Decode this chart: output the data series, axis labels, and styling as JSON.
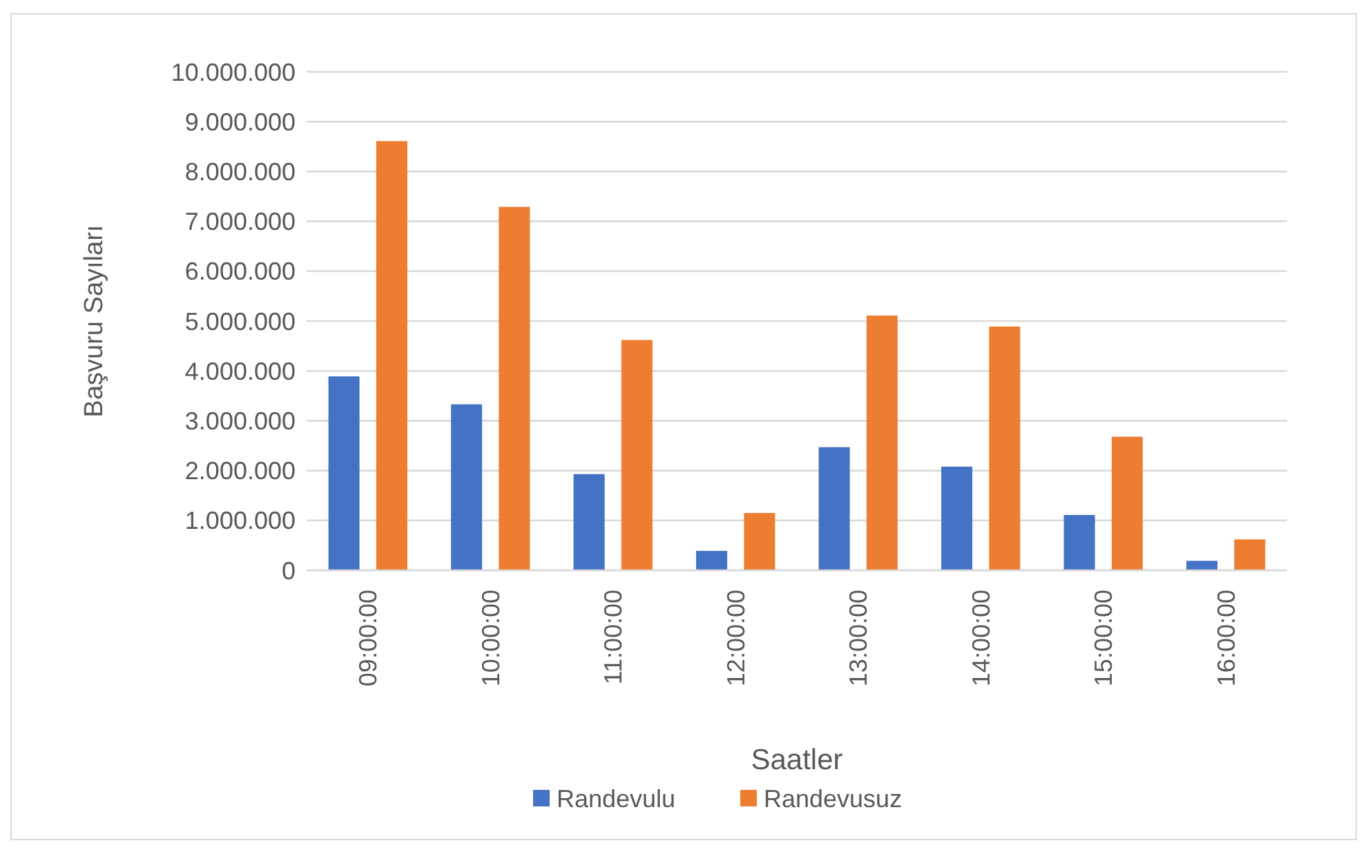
{
  "chart_data": {
    "type": "bar",
    "xlabel": "Saatler",
    "ylabel": "Başvuru Sayıları",
    "categories": [
      "09:00:00",
      "10:00:00",
      "11:00:00",
      "12:00:00",
      "13:00:00",
      "14:00:00",
      "15:00:00",
      "16:00:00"
    ],
    "series": [
      {
        "name": "Randevulu",
        "color": "#4472c4",
        "values": [
          3890000,
          3330000,
          1930000,
          390000,
          2470000,
          2080000,
          1110000,
          190000
        ]
      },
      {
        "name": "Randevusuz",
        "color": "#ed7d31",
        "values": [
          8610000,
          7290000,
          4620000,
          1150000,
          5110000,
          4890000,
          2680000,
          620000
        ]
      }
    ],
    "ylim": [
      0,
      10000000
    ],
    "yticks": [
      {
        "value": 0,
        "label": "0"
      },
      {
        "value": 1000000,
        "label": "1.000.000"
      },
      {
        "value": 2000000,
        "label": "2.000.000"
      },
      {
        "value": 3000000,
        "label": "3.000.000"
      },
      {
        "value": 4000000,
        "label": "4.000.000"
      },
      {
        "value": 5000000,
        "label": "5.000.000"
      },
      {
        "value": 6000000,
        "label": "6.000.000"
      },
      {
        "value": 7000000,
        "label": "7.000.000"
      },
      {
        "value": 8000000,
        "label": "8.000.000"
      },
      {
        "value": 9000000,
        "label": "9.000.000"
      },
      {
        "value": 10000000,
        "label": "10.000.000"
      }
    ],
    "grid": "y",
    "legend": "bottom"
  }
}
